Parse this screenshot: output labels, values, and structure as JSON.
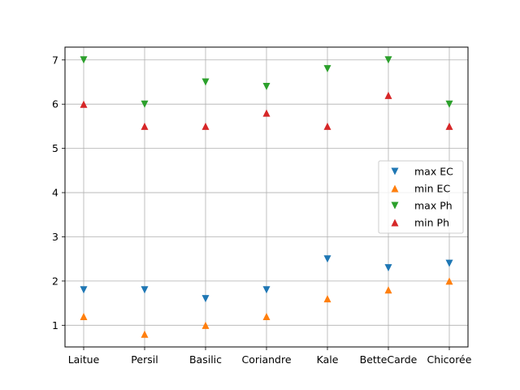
{
  "chart_data": {
    "type": "scatter",
    "categories": [
      "Laitue",
      "Persil",
      "Basilic",
      "Coriandre",
      "Kale",
      "BetteCarde",
      "Chicorée"
    ],
    "series": [
      {
        "name": "max EC",
        "marker": "triangle-down",
        "color": "#1f77b4",
        "values": [
          1.8,
          1.8,
          1.6,
          1.8,
          2.5,
          2.3,
          2.4
        ]
      },
      {
        "name": "min EC",
        "marker": "triangle-up",
        "color": "#ff7f0e",
        "values": [
          1.2,
          0.8,
          1.0,
          1.2,
          1.6,
          1.8,
          2.0
        ]
      },
      {
        "name": "max Ph",
        "marker": "triangle-down",
        "color": "#2ca02c",
        "values": [
          7.0,
          6.0,
          6.5,
          6.4,
          6.8,
          7.0,
          6.0
        ]
      },
      {
        "name": "min Ph",
        "marker": "triangle-up",
        "color": "#d62728",
        "values": [
          6.0,
          5.5,
          5.5,
          5.8,
          5.5,
          6.2,
          5.5
        ]
      }
    ],
    "ylim": [
      0.51,
      7.29
    ],
    "yticks": [
      1,
      2,
      3,
      4,
      5,
      6,
      7
    ],
    "grid": true,
    "legend_position": "center-right",
    "title": "",
    "xlabel": "",
    "ylabel": ""
  }
}
